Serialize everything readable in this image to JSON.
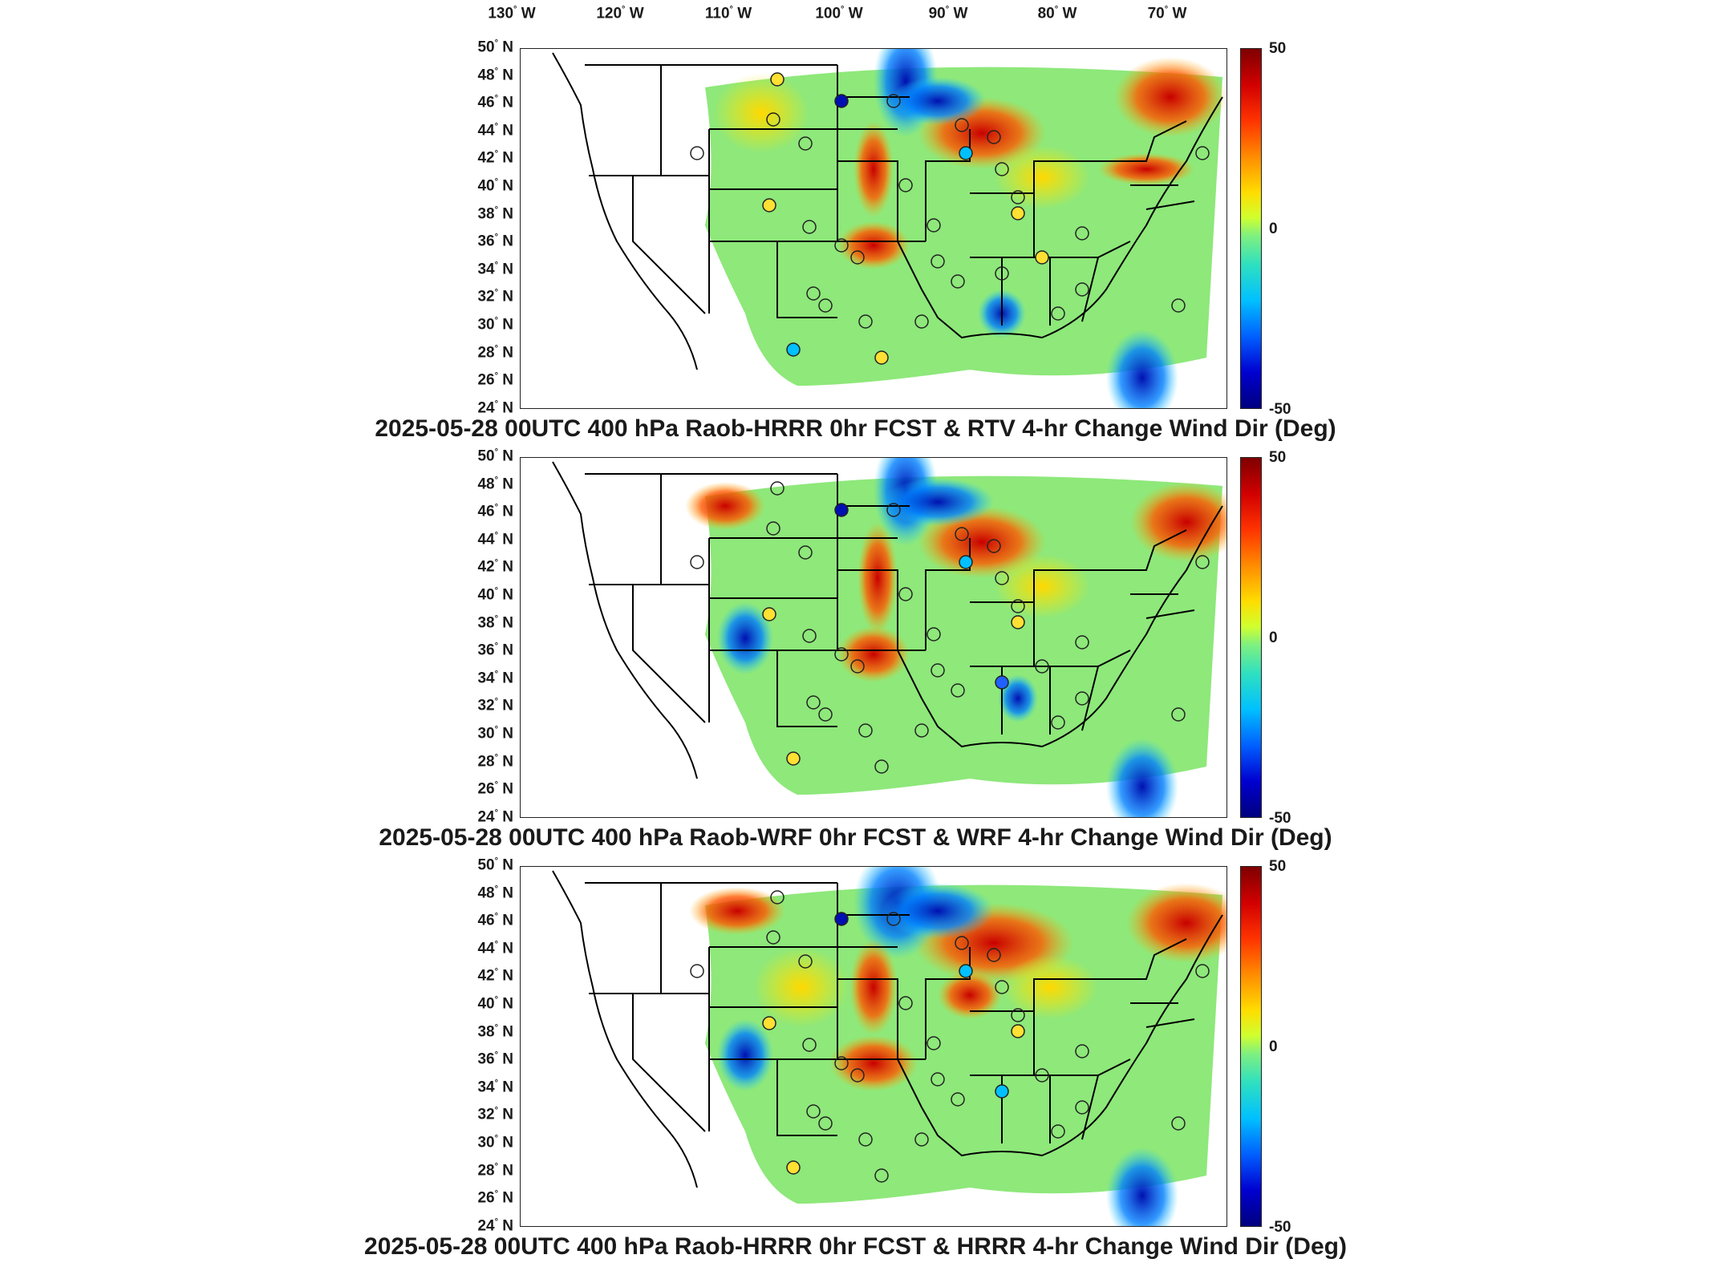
{
  "longitude_labels": [
    {
      "deg": "130",
      "hemi": "W"
    },
    {
      "deg": "120",
      "hemi": "W"
    },
    {
      "deg": "110",
      "hemi": "W"
    },
    {
      "deg": "100",
      "hemi": "W"
    },
    {
      "deg": "90",
      "hemi": "W"
    },
    {
      "deg": "80",
      "hemi": "W"
    },
    {
      "deg": "70",
      "hemi": "W"
    }
  ],
  "latitude_labels": [
    "50",
    "48",
    "46",
    "44",
    "42",
    "40",
    "38",
    "36",
    "34",
    "32",
    "30",
    "28",
    "26",
    "24"
  ],
  "latitude_hemi": "N",
  "colorbar": {
    "max_label": "50",
    "mid_label": "0",
    "min_label": "-50",
    "colors": [
      "#7f0000",
      "#ff3300",
      "#ffdd00",
      "#7ff07f",
      "#00c0ff",
      "#0000d0",
      "#00007f"
    ]
  },
  "panels": [
    {
      "title": "2025-05-28 00UTC 400 hPa Raob-HRRR 0hr FCST & RTV 4-hr Change Wind Dir (Deg)"
    },
    {
      "title": "2025-05-28 00UTC 400 hPa Raob-WRF 0hr FCST & WRF 4-hr Change Wind Dir (Deg)"
    },
    {
      "title": "2025-05-28 00UTC 400 hPa Raob-HRRR 0hr FCST & HRRR 4-hr Change Wind Dir (Deg)"
    }
  ]
}
